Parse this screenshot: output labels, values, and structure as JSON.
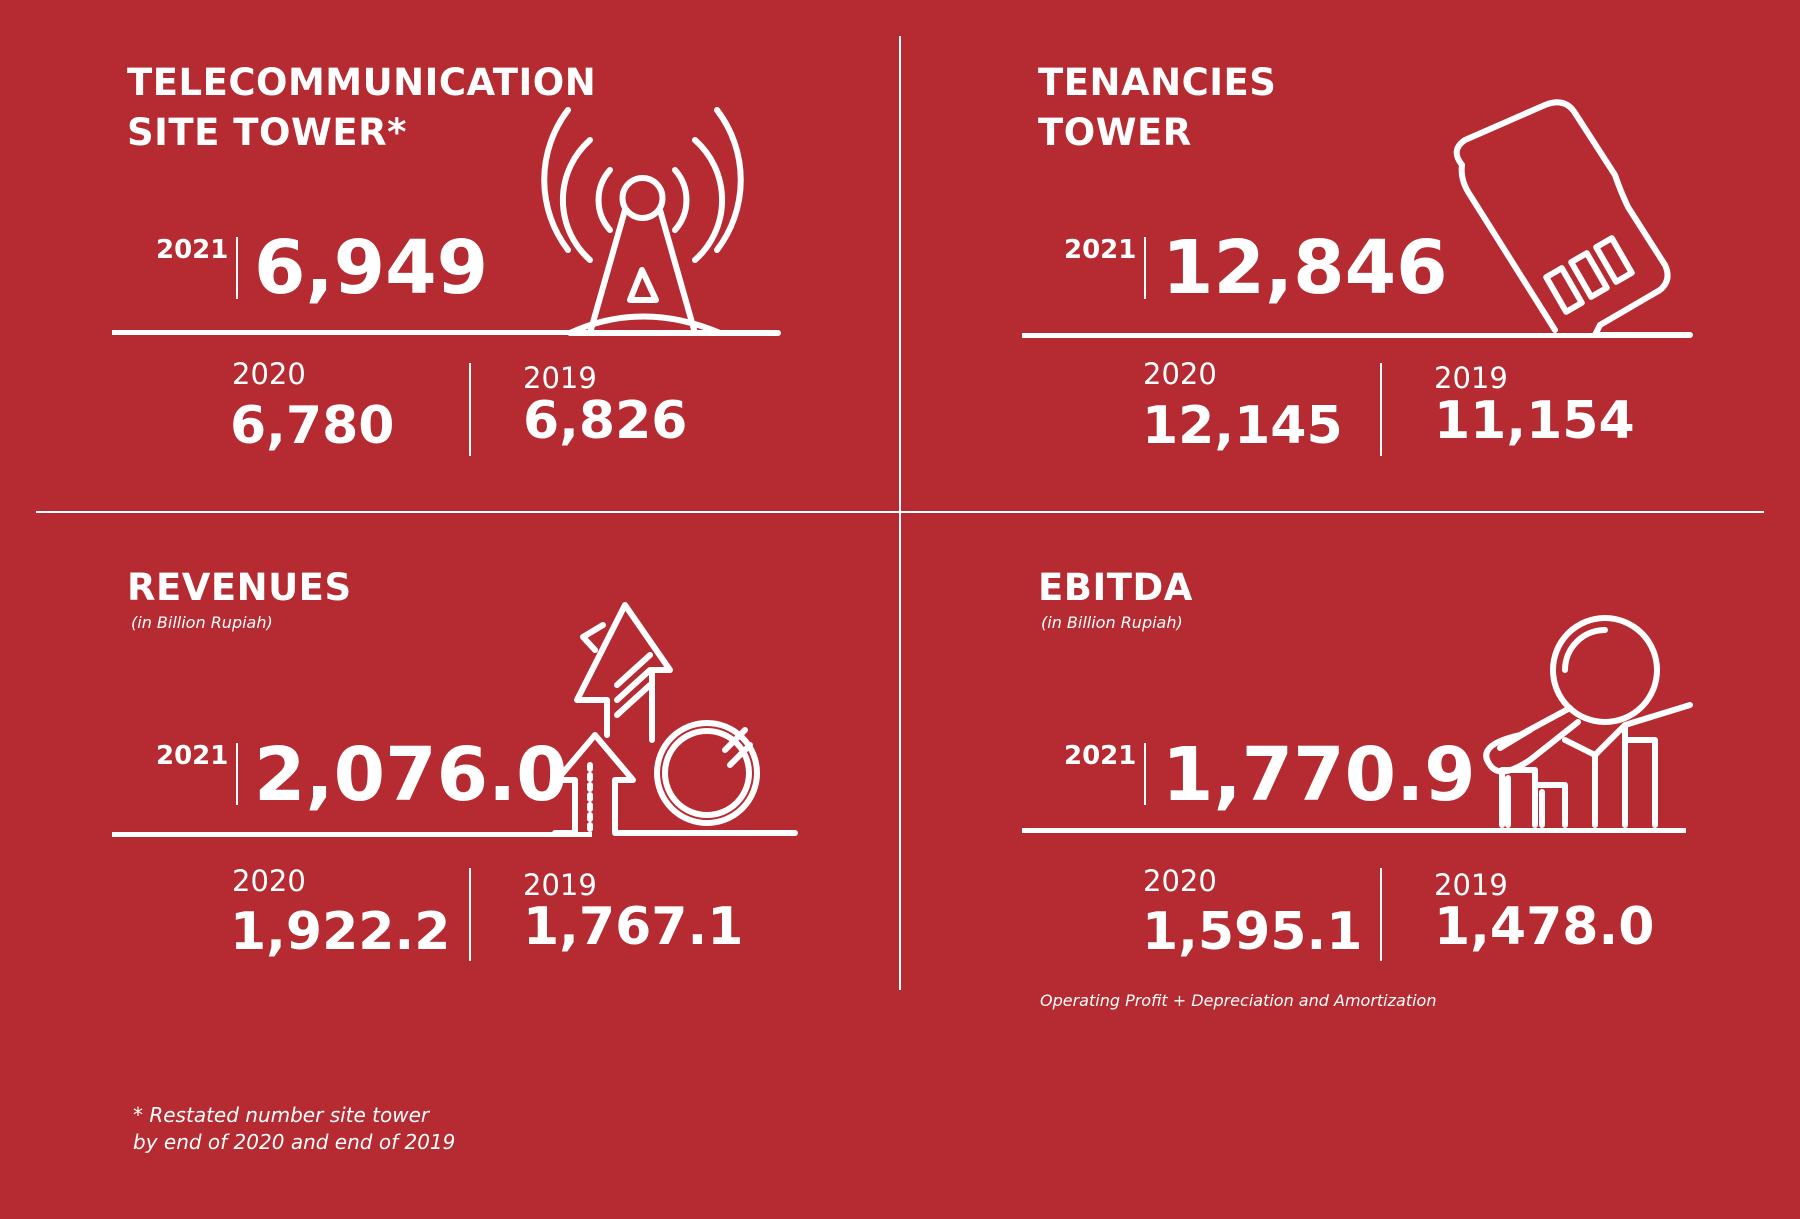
{
  "panels": {
    "towers": {
      "title_line1": "TELECOMMUNICATION",
      "title_line2": "SITE TOWER*",
      "year_main": "2021",
      "value_main": "6,949",
      "year_a": "2020",
      "value_a": "6,780",
      "year_b": "2019",
      "value_b": "6,826",
      "icon": "cell-tower-icon"
    },
    "tenancies": {
      "title_line1": "TENANCIES",
      "title_line2": "TOWER",
      "year_main": "2021",
      "value_main": "12,846",
      "year_a": "2020",
      "value_a": "12,145",
      "year_b": "2019",
      "value_b": "11,154",
      "icon": "sim-card-icon"
    },
    "revenues": {
      "title": "REVENUES",
      "subtitle": "(in Billion Rupiah)",
      "year_main": "2021",
      "value_main": "2,076.0",
      "year_a": "2020",
      "value_a": "1,922.2",
      "year_b": "2019",
      "value_b": "1,767.1",
      "icon": "growth-arrows-coin-icon"
    },
    "ebitda": {
      "title": "EBITDA",
      "subtitle": "(in Billion Rupiah)",
      "year_main": "2021",
      "value_main": "1,770.9",
      "year_a": "2020",
      "value_a": "1,595.1",
      "year_b": "2019",
      "value_b": "1,478.0",
      "note": "Operating Profit + Depreciation and Amortization",
      "icon": "bar-chart-magnifier-icon"
    }
  },
  "footnote": {
    "line1": "* Restated number site tower",
    "line2": "by end of 2020 and end of 2019"
  }
}
